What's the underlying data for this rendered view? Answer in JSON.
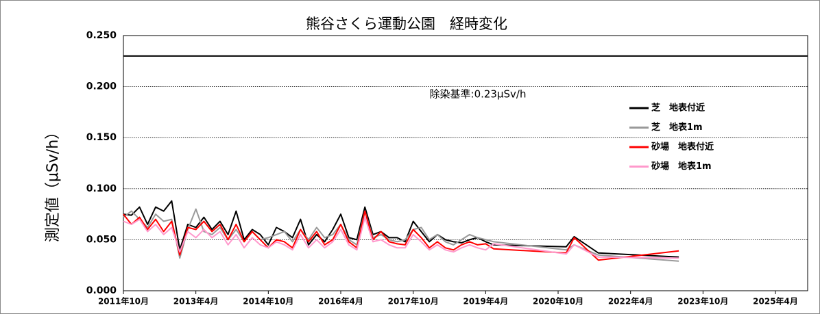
{
  "chart_data": {
    "type": "line",
    "title": "熊谷さくら運動公園　経時変化",
    "ylabel": "測定値（μSv/h）",
    "annotation": {
      "value": 0.23,
      "label": "除染基準:0.23μSv/h"
    },
    "x": [
      "2011-10",
      "2011-12",
      "2012-02",
      "2012-04",
      "2012-06",
      "2012-08",
      "2012-10",
      "2012-12",
      "2013-02",
      "2013-04",
      "2013-06",
      "2013-08",
      "2013-10",
      "2013-12",
      "2014-02",
      "2014-04",
      "2014-06",
      "2014-08",
      "2014-10",
      "2014-12",
      "2015-02",
      "2015-04",
      "2015-06",
      "2015-08",
      "2015-10",
      "2015-12",
      "2016-02",
      "2016-04",
      "2016-06",
      "2016-08",
      "2016-10",
      "2016-12",
      "2017-02",
      "2017-04",
      "2017-06",
      "2017-08",
      "2017-10",
      "2017-12",
      "2018-02",
      "2018-04",
      "2018-06",
      "2018-08",
      "2018-10",
      "2018-12",
      "2019-02",
      "2019-04",
      "2019-06",
      "2020-12",
      "2021-02",
      "2021-08",
      "2023-04"
    ],
    "series": [
      {
        "name": "芝　地表付近",
        "color": "#000000",
        "values": [
          0.075,
          0.074,
          0.082,
          0.065,
          0.082,
          0.078,
          0.088,
          0.04,
          0.065,
          0.062,
          0.072,
          0.06,
          0.068,
          0.055,
          0.078,
          0.05,
          0.06,
          0.055,
          0.045,
          0.062,
          0.058,
          0.052,
          0.07,
          0.045,
          0.055,
          0.048,
          0.06,
          0.075,
          0.052,
          0.05,
          0.082,
          0.055,
          0.058,
          0.052,
          0.052,
          0.048,
          0.068,
          0.058,
          0.048,
          0.055,
          0.05,
          0.048,
          0.047,
          0.05,
          0.052,
          0.048,
          0.045,
          0.043,
          0.053,
          0.037,
          0.033
        ]
      },
      {
        "name": "芝　地表1m",
        "color": "#999999",
        "values": [
          0.072,
          0.078,
          0.07,
          0.062,
          0.075,
          0.068,
          0.07,
          0.032,
          0.06,
          0.08,
          0.058,
          0.055,
          0.062,
          0.05,
          0.06,
          0.048,
          0.058,
          0.05,
          0.052,
          0.055,
          0.058,
          0.048,
          0.06,
          0.05,
          0.062,
          0.052,
          0.055,
          0.065,
          0.05,
          0.045,
          0.078,
          0.052,
          0.055,
          0.05,
          0.048,
          0.05,
          0.06,
          0.062,
          0.05,
          0.055,
          0.048,
          0.045,
          0.05,
          0.055,
          0.052,
          0.05,
          0.048,
          0.04,
          0.045,
          0.035,
          0.029
        ]
      },
      {
        "name": "砂場　地表付近",
        "color": "#ff0000",
        "values": [
          0.075,
          0.065,
          0.072,
          0.06,
          0.07,
          0.058,
          0.068,
          0.035,
          0.062,
          0.06,
          0.068,
          0.058,
          0.065,
          0.05,
          0.065,
          0.048,
          0.058,
          0.05,
          0.042,
          0.05,
          0.048,
          0.042,
          0.06,
          0.048,
          0.058,
          0.045,
          0.05,
          0.065,
          0.048,
          0.042,
          0.078,
          0.05,
          0.058,
          0.048,
          0.046,
          0.045,
          0.06,
          0.052,
          0.042,
          0.048,
          0.042,
          0.04,
          0.045,
          0.048,
          0.045,
          0.046,
          0.041,
          0.037,
          0.052,
          0.03,
          0.039
        ]
      },
      {
        "name": "砂場　地表1m",
        "color": "#ff99cc",
        "values": [
          0.068,
          0.065,
          0.07,
          0.058,
          0.065,
          0.055,
          0.062,
          0.038,
          0.058,
          0.052,
          0.06,
          0.052,
          0.058,
          0.045,
          0.055,
          0.042,
          0.052,
          0.045,
          0.042,
          0.048,
          0.045,
          0.04,
          0.055,
          0.042,
          0.05,
          0.042,
          0.048,
          0.06,
          0.045,
          0.04,
          0.072,
          0.048,
          0.05,
          0.045,
          0.042,
          0.042,
          0.055,
          0.048,
          0.04,
          0.045,
          0.04,
          0.038,
          0.042,
          0.045,
          0.042,
          0.04,
          0.046,
          0.036,
          0.045,
          0.033,
          0.032
        ]
      }
    ],
    "xlim": [
      "2011-10",
      "2025-12"
    ],
    "xticks": [
      {
        "value": "2011-10",
        "label": "2011年10月"
      },
      {
        "value": "2013-04",
        "label": "2013年4月"
      },
      {
        "value": "2014-10",
        "label": "2014年10月"
      },
      {
        "value": "2016-04",
        "label": "2016年4月"
      },
      {
        "value": "2017-10",
        "label": "2017年10月"
      },
      {
        "value": "2019-04",
        "label": "2019年4月"
      },
      {
        "value": "2020-10",
        "label": "2020年10月"
      },
      {
        "value": "2022-04",
        "label": "2022年4月"
      },
      {
        "value": "2023-10",
        "label": "2023年10月"
      },
      {
        "value": "2025-04",
        "label": "2025年4月"
      }
    ],
    "ylim": [
      0,
      0.25
    ],
    "yticks": [
      {
        "value": 0,
        "label": "0.000"
      },
      {
        "value": 0.05,
        "label": "0.050"
      },
      {
        "value": 0.1,
        "label": "0.100"
      },
      {
        "value": 0.15,
        "label": "0.150"
      },
      {
        "value": 0.2,
        "label": "0.200"
      },
      {
        "value": 0.25,
        "label": "0.250"
      }
    ],
    "grid": true,
    "legend": "upper right"
  }
}
